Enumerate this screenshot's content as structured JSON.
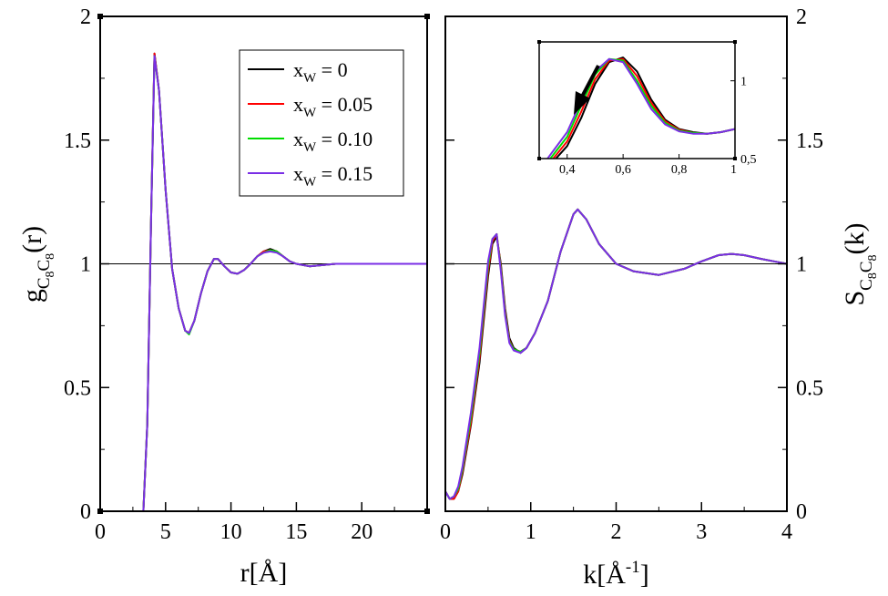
{
  "chart_data": [
    {
      "type": "line",
      "xlabel": "r[Å]",
      "ylabel": "g",
      "ylabel_subscript": [
        "C",
        "8",
        "C",
        "8"
      ],
      "ylabel_suffix": "(r)",
      "xlim": [
        0,
        25
      ],
      "ylim": [
        0,
        2
      ],
      "xticks": [
        "0",
        "5",
        "10",
        "15",
        "20"
      ],
      "yticks": [
        "0",
        "0.5",
        "1",
        "1.5",
        "2"
      ],
      "reference_line": 1,
      "legend_position": "top-right",
      "legend_var": "x",
      "legend_var_sub": "W",
      "series": [
        {
          "name": "= 0",
          "color": "#000000",
          "x": [
            3.3,
            3.6,
            3.9,
            4.15,
            4.5,
            5.0,
            5.5,
            6.0,
            6.5,
            6.8,
            7.2,
            7.7,
            8.2,
            8.7,
            9.0,
            9.5,
            10.0,
            10.5,
            11.0,
            11.5,
            12.0,
            12.5,
            13.0,
            13.5,
            14.0,
            14.5,
            15.0,
            16.0,
            18.0,
            20.0,
            22.0,
            25.0
          ],
          "y": [
            0.0,
            0.35,
            1.2,
            1.85,
            1.7,
            1.3,
            0.98,
            0.82,
            0.73,
            0.72,
            0.77,
            0.88,
            0.97,
            1.02,
            1.02,
            0.99,
            0.965,
            0.96,
            0.975,
            1.0,
            1.03,
            1.05,
            1.06,
            1.05,
            1.03,
            1.01,
            1.0,
            0.99,
            1.0,
            1.0,
            1.0,
            1.0
          ]
        },
        {
          "name": "= 0.05",
          "color": "#ff0000",
          "x": [
            3.3,
            3.6,
            3.9,
            4.15,
            4.5,
            5.0,
            5.5,
            6.0,
            6.5,
            6.8,
            7.2,
            7.7,
            8.2,
            8.7,
            9.0,
            9.5,
            10.0,
            10.5,
            11.0,
            11.5,
            12.0,
            12.5,
            13.0,
            13.5,
            14.0,
            14.5,
            15.0,
            16.0,
            18.0,
            20.0,
            22.0,
            25.0
          ],
          "y": [
            0.0,
            0.35,
            1.2,
            1.85,
            1.7,
            1.3,
            0.98,
            0.82,
            0.73,
            0.72,
            0.77,
            0.88,
            0.97,
            1.02,
            1.02,
            0.99,
            0.965,
            0.96,
            0.975,
            1.0,
            1.03,
            1.05,
            1.055,
            1.05,
            1.03,
            1.01,
            1.0,
            0.99,
            1.0,
            1.0,
            1.0,
            1.0
          ]
        },
        {
          "name": "= 0.10",
          "color": "#00dd00",
          "x": [
            3.3,
            3.6,
            3.9,
            4.15,
            4.5,
            5.0,
            5.5,
            6.0,
            6.5,
            6.8,
            7.2,
            7.7,
            8.2,
            8.7,
            9.0,
            9.5,
            10.0,
            10.5,
            11.0,
            11.5,
            12.0,
            12.5,
            13.0,
            13.5,
            14.0,
            14.5,
            15.0,
            16.0,
            18.0,
            20.0,
            22.0,
            25.0
          ],
          "y": [
            0.0,
            0.35,
            1.2,
            1.84,
            1.7,
            1.3,
            0.98,
            0.82,
            0.73,
            0.715,
            0.77,
            0.88,
            0.97,
            1.02,
            1.02,
            0.99,
            0.965,
            0.96,
            0.975,
            1.0,
            1.03,
            1.045,
            1.055,
            1.05,
            1.03,
            1.01,
            1.0,
            0.99,
            1.0,
            1.0,
            1.0,
            1.0
          ]
        },
        {
          "name": "= 0.15",
          "color": "#7a2ee6",
          "x": [
            3.3,
            3.6,
            3.9,
            4.15,
            4.5,
            5.0,
            5.5,
            6.0,
            6.5,
            6.8,
            7.2,
            7.7,
            8.2,
            8.7,
            9.0,
            9.5,
            10.0,
            10.5,
            11.0,
            11.5,
            12.0,
            12.5,
            13.0,
            13.5,
            14.0,
            14.5,
            15.0,
            16.0,
            18.0,
            20.0,
            22.0,
            25.0
          ],
          "y": [
            0.0,
            0.35,
            1.2,
            1.84,
            1.7,
            1.3,
            0.98,
            0.82,
            0.73,
            0.72,
            0.77,
            0.88,
            0.97,
            1.02,
            1.02,
            0.99,
            0.965,
            0.96,
            0.975,
            1.0,
            1.03,
            1.045,
            1.05,
            1.045,
            1.03,
            1.01,
            1.0,
            0.99,
            1.0,
            1.0,
            1.0,
            1.0
          ]
        }
      ]
    },
    {
      "type": "line",
      "xlabel": "k[Å",
      "xlabel_sup": "-1",
      "xlabel_suffix": "]",
      "ylabel": "S",
      "ylabel_subscript": [
        "C",
        "8",
        "C",
        "8"
      ],
      "ylabel_suffix": "(k)",
      "xlim": [
        0,
        4
      ],
      "ylim": [
        0,
        2
      ],
      "xticks": [
        "0",
        "1",
        "2",
        "3",
        "4"
      ],
      "yticks": [
        "0",
        "0.5",
        "1",
        "1.5",
        "2"
      ],
      "reference_line": 1,
      "series": [
        {
          "name": "x_W = 0",
          "color": "#000000",
          "x": [
            0.0,
            0.05,
            0.1,
            0.15,
            0.2,
            0.3,
            0.4,
            0.5,
            0.55,
            0.6,
            0.65,
            0.7,
            0.75,
            0.8,
            0.88,
            0.95,
            1.05,
            1.2,
            1.35,
            1.5,
            1.55,
            1.65,
            1.8,
            2.0,
            2.2,
            2.5,
            2.8,
            3.0,
            3.2,
            3.35,
            3.5,
            3.7,
            3.85,
            4.0
          ],
          "y": [
            0.08,
            0.05,
            0.05,
            0.08,
            0.15,
            0.35,
            0.6,
            0.95,
            1.08,
            1.11,
            1.0,
            0.82,
            0.7,
            0.66,
            0.64,
            0.66,
            0.72,
            0.85,
            1.05,
            1.2,
            1.22,
            1.18,
            1.08,
            1.0,
            0.97,
            0.955,
            0.98,
            1.01,
            1.035,
            1.04,
            1.035,
            1.02,
            1.01,
            1.0
          ]
        },
        {
          "name": "x_W = 0.05",
          "color": "#ff0000",
          "x": [
            0.0,
            0.05,
            0.1,
            0.15,
            0.2,
            0.3,
            0.4,
            0.5,
            0.55,
            0.6,
            0.65,
            0.7,
            0.75,
            0.8,
            0.88,
            0.95,
            1.05,
            1.2,
            1.35,
            1.5,
            1.55,
            1.65,
            1.8,
            2.0,
            2.2,
            2.5,
            2.8,
            3.0,
            3.2,
            3.35,
            3.5,
            3.7,
            3.85,
            4.0
          ],
          "y": [
            0.08,
            0.05,
            0.05,
            0.08,
            0.16,
            0.36,
            0.62,
            0.97,
            1.09,
            1.12,
            0.99,
            0.81,
            0.69,
            0.655,
            0.645,
            0.66,
            0.72,
            0.85,
            1.05,
            1.2,
            1.22,
            1.18,
            1.08,
            1.0,
            0.97,
            0.955,
            0.98,
            1.01,
            1.035,
            1.04,
            1.035,
            1.02,
            1.01,
            1.0
          ]
        },
        {
          "name": "x_W = 0.10",
          "color": "#00dd00",
          "x": [
            0.0,
            0.05,
            0.1,
            0.15,
            0.2,
            0.3,
            0.4,
            0.5,
            0.55,
            0.6,
            0.65,
            0.7,
            0.75,
            0.8,
            0.88,
            0.95,
            1.05,
            1.2,
            1.35,
            1.5,
            1.55,
            1.65,
            1.8,
            2.0,
            2.2,
            2.5,
            2.8,
            3.0,
            3.2,
            3.35,
            3.5,
            3.7,
            3.85,
            4.0
          ],
          "y": [
            0.08,
            0.05,
            0.06,
            0.09,
            0.17,
            0.38,
            0.64,
            0.99,
            1.1,
            1.12,
            0.98,
            0.8,
            0.685,
            0.655,
            0.645,
            0.66,
            0.72,
            0.85,
            1.05,
            1.2,
            1.22,
            1.18,
            1.08,
            1.0,
            0.97,
            0.955,
            0.98,
            1.01,
            1.035,
            1.04,
            1.035,
            1.02,
            1.01,
            1.0
          ]
        },
        {
          "name": "x_W = 0.15",
          "color": "#7a2ee6",
          "x": [
            0.0,
            0.05,
            0.1,
            0.15,
            0.2,
            0.3,
            0.4,
            0.5,
            0.55,
            0.6,
            0.65,
            0.7,
            0.75,
            0.8,
            0.88,
            0.95,
            1.05,
            1.2,
            1.35,
            1.5,
            1.55,
            1.65,
            1.8,
            2.0,
            2.2,
            2.5,
            2.8,
            3.0,
            3.2,
            3.35,
            3.5,
            3.7,
            3.85,
            4.0
          ],
          "y": [
            0.08,
            0.05,
            0.06,
            0.1,
            0.18,
            0.4,
            0.66,
            1.01,
            1.1,
            1.12,
            0.97,
            0.79,
            0.68,
            0.65,
            0.64,
            0.66,
            0.72,
            0.85,
            1.05,
            1.2,
            1.22,
            1.18,
            1.08,
            1.0,
            0.97,
            0.955,
            0.98,
            1.01,
            1.035,
            1.04,
            1.035,
            1.02,
            1.01,
            1.0
          ]
        }
      ]
    },
    {
      "type": "line",
      "role": "inset of right panel",
      "xlim": [
        0.3,
        1.0
      ],
      "ylim": [
        0.5,
        1.25
      ],
      "xticks": [
        "0,4",
        "0,6",
        "0,8",
        "1"
      ],
      "yticks": [
        "0,5",
        "1"
      ],
      "annotation": "black arrow pointing down-left toward lower k",
      "series": [
        {
          "name": "x_W = 0",
          "color": "#000000",
          "x": [
            0.36,
            0.4,
            0.45,
            0.5,
            0.55,
            0.6,
            0.65,
            0.7,
            0.75,
            0.8,
            0.85,
            0.9,
            0.95,
            1.0
          ],
          "y": [
            0.5,
            0.58,
            0.76,
            0.98,
            1.12,
            1.15,
            1.06,
            0.88,
            0.75,
            0.69,
            0.67,
            0.66,
            0.67,
            0.69
          ]
        },
        {
          "name": "x_W = 0.05",
          "color": "#ff0000",
          "x": [
            0.35,
            0.4,
            0.45,
            0.5,
            0.55,
            0.6,
            0.65,
            0.7,
            0.75,
            0.8,
            0.85,
            0.9,
            0.95,
            1.0
          ],
          "y": [
            0.5,
            0.61,
            0.8,
            1.01,
            1.13,
            1.14,
            1.03,
            0.86,
            0.74,
            0.685,
            0.665,
            0.66,
            0.67,
            0.69
          ]
        },
        {
          "name": "x_W = 0.10",
          "color": "#00dd00",
          "x": [
            0.34,
            0.4,
            0.45,
            0.5,
            0.55,
            0.6,
            0.65,
            0.7,
            0.75,
            0.8,
            0.85,
            0.9,
            0.95,
            1.0
          ],
          "y": [
            0.5,
            0.64,
            0.84,
            1.04,
            1.14,
            1.13,
            1.0,
            0.84,
            0.73,
            0.68,
            0.665,
            0.66,
            0.67,
            0.69
          ]
        },
        {
          "name": "x_W = 0.15",
          "color": "#7a2ee6",
          "x": [
            0.33,
            0.4,
            0.45,
            0.5,
            0.55,
            0.6,
            0.65,
            0.7,
            0.75,
            0.8,
            0.85,
            0.9,
            0.95,
            1.0
          ],
          "y": [
            0.5,
            0.67,
            0.87,
            1.06,
            1.14,
            1.12,
            0.98,
            0.82,
            0.72,
            0.675,
            0.66,
            0.66,
            0.67,
            0.69
          ]
        }
      ]
    }
  ]
}
